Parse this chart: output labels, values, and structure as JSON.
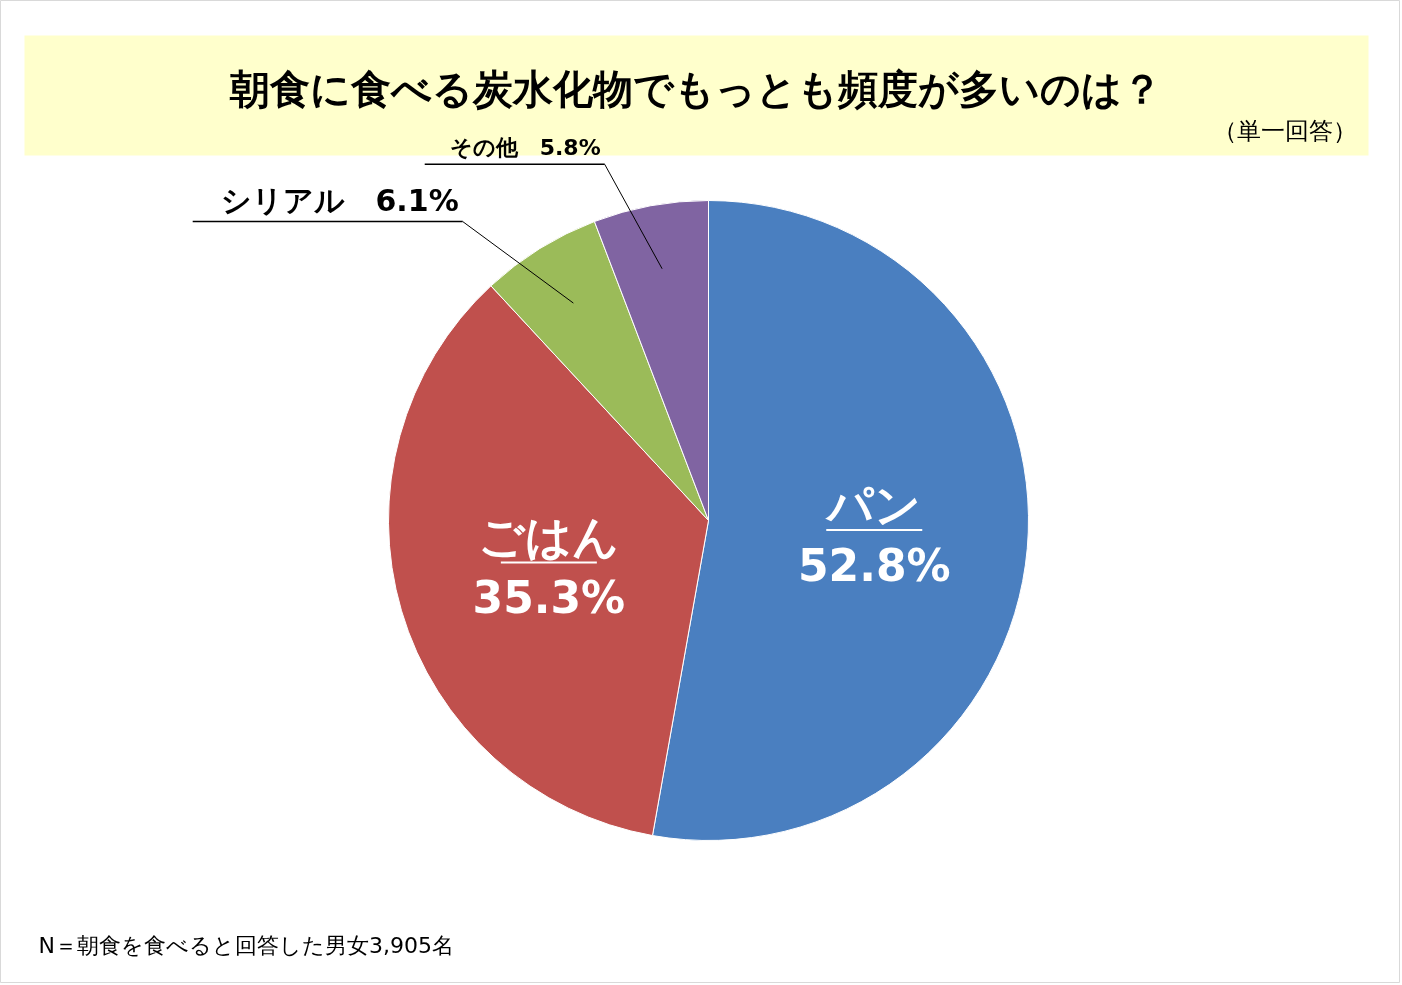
{
  "chart_data": {
    "type": "pie",
    "title": "朝食に食べる炭水化物でもっとも頻度が多いのは？",
    "subtitle": "（単一回答）",
    "categories": [
      "パン",
      "ごはん",
      "シリアル",
      "その他"
    ],
    "values": [
      52.8,
      35.3,
      6.1,
      5.8
    ],
    "value_labels": [
      "52.8%",
      "35.3%",
      "6.1%",
      "5.8%"
    ],
    "colors": [
      "#4a7fc0",
      "#c0504d",
      "#9bbb59",
      "#8064a2"
    ],
    "annotations": [
      "N＝朝食を食べると回答した男女3,905名"
    ]
  }
}
